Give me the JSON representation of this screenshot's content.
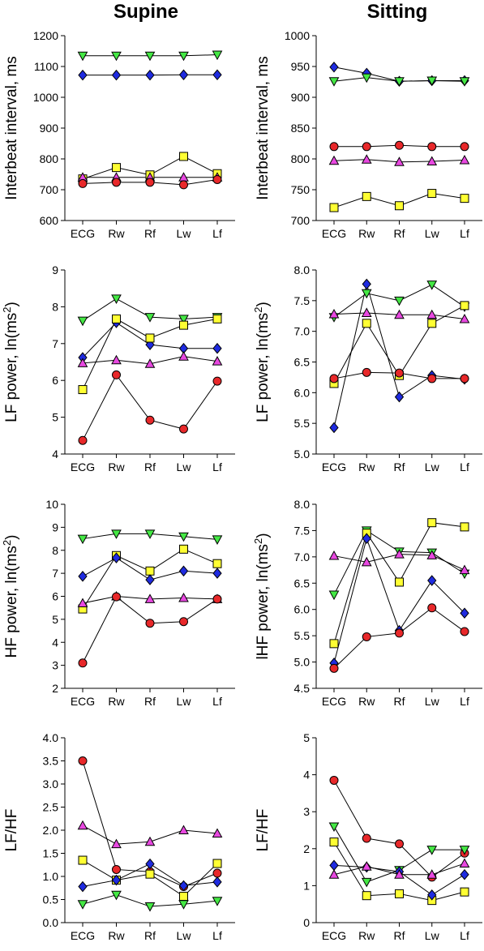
{
  "columns": [
    {
      "title": "Supine"
    },
    {
      "title": "Sitting"
    }
  ],
  "colors": {
    "red": "#E8282A",
    "yellow": "#FFFF33",
    "blue": "#1F2BE0",
    "green": "#44E844",
    "magenta": "#E848E0",
    "line": "#000000"
  },
  "chart_data": [
    {
      "type": "line",
      "column": "Supine",
      "ylabel": "Interbeat interval, ms",
      "ylabel_sup": "",
      "ylabel_tail": "",
      "categories": [
        "ECG",
        "Rw",
        "Rf",
        "Lw",
        "Lf"
      ],
      "ylim": [
        600,
        1200
      ],
      "yticks": [
        600,
        700,
        800,
        900,
        1000,
        1100,
        1200
      ],
      "tick_decimals": 0,
      "series": [
        {
          "marker": "triangle-down",
          "color": "green",
          "values": [
            1135,
            1135,
            1135,
            1135,
            1138
          ]
        },
        {
          "marker": "diamond",
          "color": "blue",
          "values": [
            1072,
            1072,
            1072,
            1073,
            1073
          ]
        },
        {
          "marker": "square",
          "color": "yellow",
          "values": [
            735,
            772,
            748,
            808,
            752
          ]
        },
        {
          "marker": "triangle-up",
          "color": "magenta",
          "values": [
            740,
            740,
            740,
            740,
            740
          ]
        },
        {
          "marker": "circle",
          "color": "red",
          "values": [
            720,
            724,
            724,
            716,
            733
          ]
        }
      ]
    },
    {
      "type": "line",
      "column": "Sitting",
      "ylabel": "Interbeat interval, ms",
      "ylabel_sup": "",
      "ylabel_tail": "",
      "categories": [
        "ECG",
        "Rw",
        "Rf",
        "Lw",
        "Lf"
      ],
      "ylim": [
        700,
        1000
      ],
      "yticks": [
        700,
        750,
        800,
        850,
        900,
        950,
        1000
      ],
      "tick_decimals": 0,
      "series": [
        {
          "marker": "diamond",
          "color": "blue",
          "values": [
            949,
            939,
            926,
            927,
            927
          ]
        },
        {
          "marker": "triangle-down",
          "color": "green",
          "values": [
            926,
            932,
            926,
            927,
            926
          ]
        },
        {
          "marker": "circle",
          "color": "red",
          "values": [
            820,
            820,
            822,
            820,
            820
          ]
        },
        {
          "marker": "triangle-up",
          "color": "magenta",
          "values": [
            797,
            799,
            795,
            796,
            798
          ]
        },
        {
          "marker": "square",
          "color": "yellow",
          "values": [
            721,
            739,
            724,
            744,
            736
          ]
        }
      ]
    },
    {
      "type": "line",
      "column": "Supine",
      "ylabel": "LF power, ln(ms",
      "ylabel_sup": "2",
      "ylabel_tail": ")",
      "categories": [
        "ECG",
        "Rw",
        "Rf",
        "Lw",
        "Lf"
      ],
      "ylim": [
        4,
        9
      ],
      "yticks": [
        4,
        5,
        6,
        7,
        8,
        9
      ],
      "tick_decimals": 0,
      "series": [
        {
          "marker": "triangle-down",
          "color": "green",
          "values": [
            7.62,
            8.22,
            7.72,
            7.67,
            7.72
          ]
        },
        {
          "marker": "diamond",
          "color": "blue",
          "values": [
            6.62,
            7.57,
            6.97,
            6.87,
            6.87
          ]
        },
        {
          "marker": "square",
          "color": "yellow",
          "values": [
            5.75,
            7.67,
            7.15,
            7.5,
            7.67
          ]
        },
        {
          "marker": "triangle-up",
          "color": "magenta",
          "values": [
            6.47,
            6.55,
            6.45,
            6.65,
            6.52
          ]
        },
        {
          "marker": "circle",
          "color": "red",
          "values": [
            4.37,
            6.15,
            4.92,
            4.68,
            5.98
          ]
        }
      ]
    },
    {
      "type": "line",
      "column": "Sitting",
      "ylabel": "LF power, ln(ms",
      "ylabel_sup": "2",
      "ylabel_tail": ")",
      "categories": [
        "ECG",
        "Rw",
        "Rf",
        "Lw",
        "Lf"
      ],
      "ylim": [
        5.0,
        8.0
      ],
      "yticks": [
        5.0,
        5.5,
        6.0,
        6.5,
        7.0,
        7.5,
        8.0
      ],
      "tick_decimals": 1,
      "series": [
        {
          "marker": "triangle-down",
          "color": "green",
          "values": [
            7.23,
            7.62,
            7.5,
            7.76,
            7.4
          ]
        },
        {
          "marker": "triangle-up",
          "color": "magenta",
          "values": [
            7.28,
            7.3,
            7.27,
            7.27,
            7.2
          ]
        },
        {
          "marker": "diamond",
          "color": "blue",
          "values": [
            5.43,
            7.77,
            5.93,
            6.28,
            6.22
          ]
        },
        {
          "marker": "square",
          "color": "yellow",
          "values": [
            6.15,
            7.13,
            6.28,
            7.13,
            7.42
          ]
        },
        {
          "marker": "circle",
          "color": "red",
          "values": [
            6.23,
            6.33,
            6.32,
            6.23,
            6.23
          ]
        }
      ]
    },
    {
      "type": "line",
      "column": "Supine",
      "ylabel": "HF power, ln(ms",
      "ylabel_sup": "2",
      "ylabel_tail": ")",
      "categories": [
        "ECG",
        "Rw",
        "Rf",
        "Lw",
        "Lf"
      ],
      "ylim": [
        2,
        10
      ],
      "yticks": [
        2,
        3,
        4,
        5,
        6,
        7,
        8,
        9,
        10
      ],
      "tick_decimals": 0,
      "series": [
        {
          "marker": "triangle-down",
          "color": "green",
          "values": [
            8.5,
            8.72,
            8.72,
            8.6,
            8.47
          ]
        },
        {
          "marker": "square",
          "color": "yellow",
          "values": [
            5.45,
            7.77,
            7.1,
            8.05,
            7.42
          ]
        },
        {
          "marker": "diamond",
          "color": "blue",
          "values": [
            6.87,
            7.67,
            6.72,
            7.1,
            7.0
          ]
        },
        {
          "marker": "triangle-up",
          "color": "magenta",
          "values": [
            5.7,
            6.0,
            5.88,
            5.93,
            5.88
          ]
        },
        {
          "marker": "circle",
          "color": "red",
          "values": [
            3.1,
            5.98,
            4.83,
            4.9,
            5.88
          ]
        }
      ]
    },
    {
      "type": "line",
      "column": "Sitting",
      "ylabel": "lHF power, ln(ms",
      "ylabel_sup": "2",
      "ylabel_tail": ")",
      "categories": [
        "ECG",
        "Rw",
        "Rf",
        "Lw",
        "Lf"
      ],
      "ylim": [
        4.5,
        8.0
      ],
      "yticks": [
        4.5,
        5.0,
        5.5,
        6.0,
        6.5,
        7.0,
        7.5,
        8.0
      ],
      "tick_decimals": 1,
      "series": [
        {
          "marker": "triangle-down",
          "color": "green",
          "values": [
            6.28,
            7.5,
            7.1,
            7.08,
            6.68
          ]
        },
        {
          "marker": "triangle-up",
          "color": "magenta",
          "values": [
            7.02,
            6.9,
            7.05,
            7.03,
            6.75
          ]
        },
        {
          "marker": "square",
          "color": "yellow",
          "values": [
            5.35,
            7.45,
            6.52,
            7.65,
            7.57
          ]
        },
        {
          "marker": "diamond",
          "color": "blue",
          "values": [
            4.98,
            7.35,
            5.6,
            6.55,
            5.93
          ]
        },
        {
          "marker": "circle",
          "color": "red",
          "values": [
            4.88,
            5.48,
            5.55,
            6.03,
            5.58
          ]
        }
      ]
    },
    {
      "type": "line",
      "column": "Supine",
      "ylabel": "LF/HF",
      "ylabel_sup": "",
      "ylabel_tail": "",
      "categories": [
        "ECG",
        "Rw",
        "Rf",
        "Lw",
        "Lf"
      ],
      "ylim": [
        0.0,
        4.0
      ],
      "yticks": [
        0.0,
        0.5,
        1.0,
        1.5,
        2.0,
        2.5,
        3.0,
        3.5,
        4.0
      ],
      "tick_decimals": 1,
      "series": [
        {
          "marker": "circle",
          "color": "red",
          "values": [
            3.5,
            1.15,
            1.1,
            0.78,
            1.07
          ]
        },
        {
          "marker": "triangle-up",
          "color": "magenta",
          "values": [
            2.1,
            1.7,
            1.75,
            2.0,
            1.93
          ]
        },
        {
          "marker": "square",
          "color": "yellow",
          "values": [
            1.35,
            0.92,
            1.05,
            0.57,
            1.28
          ]
        },
        {
          "marker": "diamond",
          "color": "blue",
          "values": [
            0.78,
            0.92,
            1.27,
            0.8,
            0.88
          ]
        },
        {
          "marker": "triangle-down",
          "color": "green",
          "values": [
            0.4,
            0.6,
            0.35,
            0.4,
            0.47
          ]
        }
      ]
    },
    {
      "type": "line",
      "column": "Sitting",
      "ylabel": "LF/HF",
      "ylabel_sup": "",
      "ylabel_tail": "",
      "categories": [
        "ECG",
        "Rw",
        "Rf",
        "Lw",
        "Lf"
      ],
      "ylim": [
        0,
        5
      ],
      "yticks": [
        0,
        1,
        2,
        3,
        4,
        5
      ],
      "tick_decimals": 0,
      "series": [
        {
          "marker": "circle",
          "color": "red",
          "values": [
            3.85,
            2.28,
            2.13,
            1.23,
            1.88
          ]
        },
        {
          "marker": "triangle-down",
          "color": "green",
          "values": [
            2.6,
            1.1,
            1.42,
            1.97,
            1.97
          ]
        },
        {
          "marker": "square",
          "color": "yellow",
          "values": [
            2.18,
            0.73,
            0.78,
            0.6,
            0.83
          ]
        },
        {
          "marker": "diamond",
          "color": "blue",
          "values": [
            1.55,
            1.5,
            1.38,
            0.75,
            1.3
          ]
        },
        {
          "marker": "triangle-up",
          "color": "magenta",
          "values": [
            1.3,
            1.52,
            1.3,
            1.3,
            1.6
          ]
        }
      ]
    }
  ]
}
